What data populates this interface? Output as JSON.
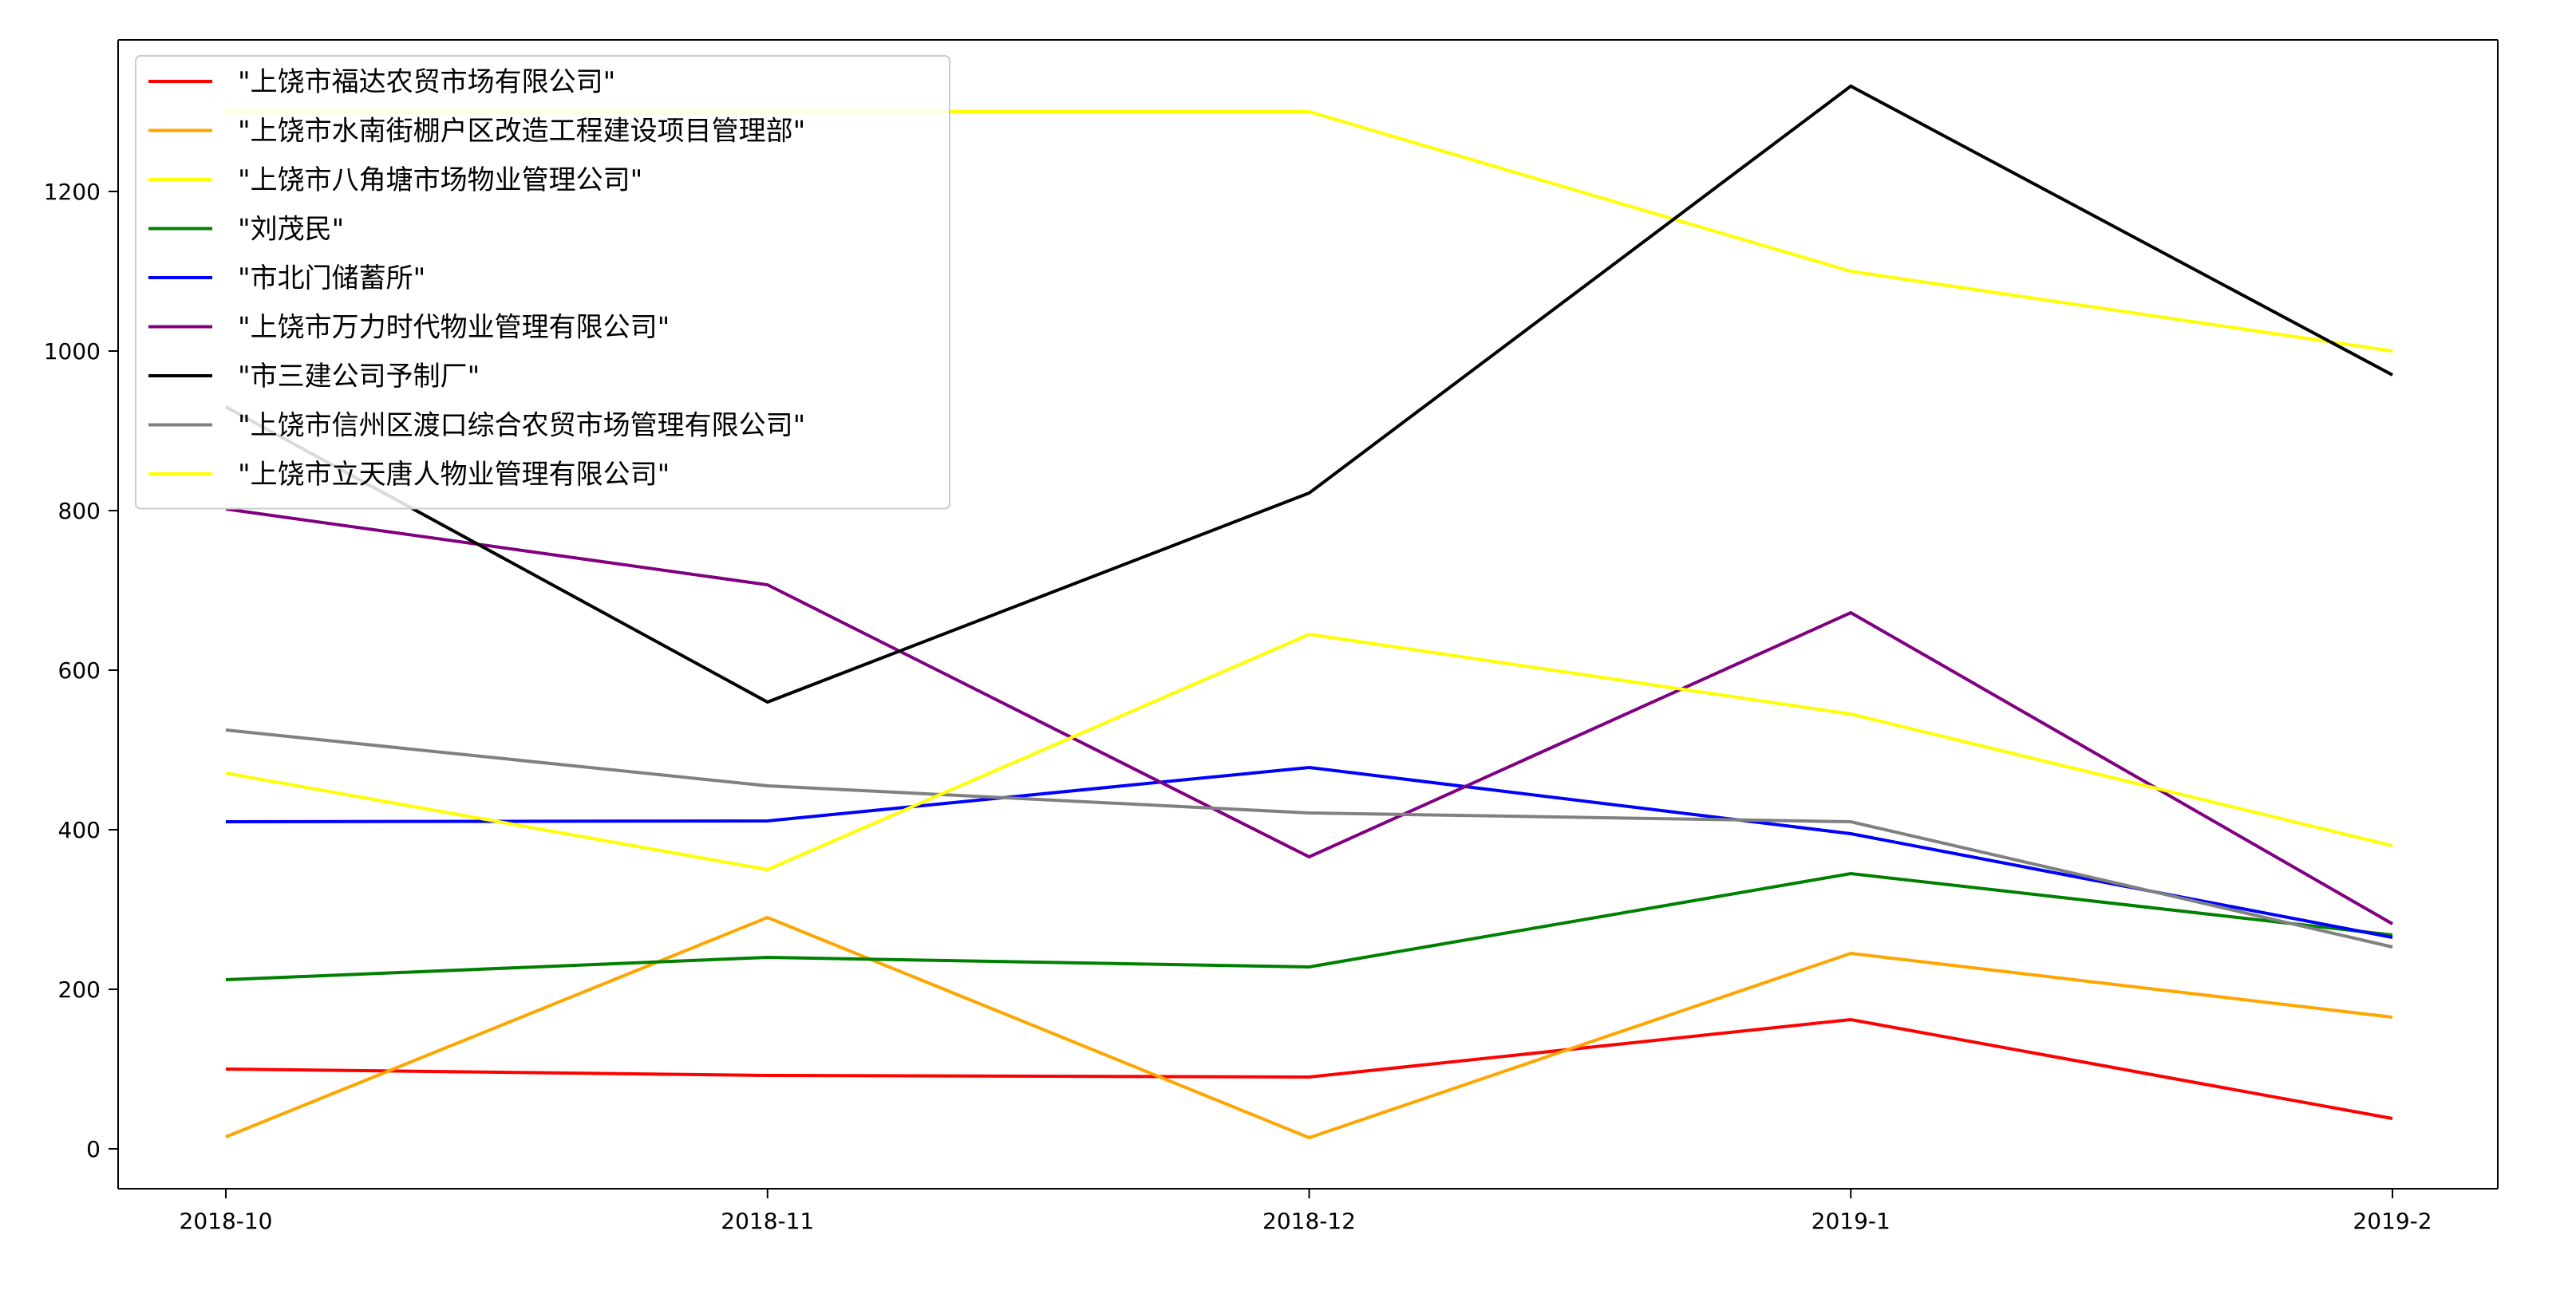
{
  "chart_data": {
    "type": "line",
    "categories": [
      "2018-10",
      "2018-11",
      "2018-12",
      "2019-1",
      "2019-2"
    ],
    "ylim": [
      -50,
      1390
    ],
    "yticks": [
      0,
      200,
      400,
      600,
      800,
      1000,
      1200
    ],
    "grid": false,
    "legend_position": "top-left",
    "series": [
      {
        "name": "\"上饶市福达农贸市场有限公司\"",
        "color": "#ff0000",
        "values": [
          100,
          92,
          90,
          162,
          38
        ]
      },
      {
        "name": "\"上饶市水南街棚户区改造工程建设项目管理部\"",
        "color": "#ffa500",
        "values": [
          15,
          290,
          14,
          245,
          165
        ]
      },
      {
        "name": "\"上饶市八角塘市场物业管理公司\"",
        "color": "#ffff00",
        "values": [
          1300,
          1300,
          1300,
          1100,
          1000
        ]
      },
      {
        "name": "\"刘茂民\"",
        "color": "#008000",
        "values": [
          212,
          240,
          228,
          345,
          268
        ]
      },
      {
        "name": "\"市北门储蓄所\"",
        "color": "#0000ff",
        "values": [
          410,
          411,
          478,
          395,
          265
        ]
      },
      {
        "name": "\"上饶市万力时代物业管理有限公司\"",
        "color": "#800080",
        "values": [
          802,
          707,
          366,
          672,
          282
        ]
      },
      {
        "name": "\"市三建公司予制厂\"",
        "color": "#000000",
        "values": [
          930,
          560,
          822,
          1332,
          970
        ]
      },
      {
        "name": "\"上饶市信州区渡口综合农贸市场管理有限公司\"",
        "color": "#808080",
        "values": [
          525,
          455,
          421,
          410,
          253
        ]
      },
      {
        "name": "\"上饶市立天唐人物业管理有限公司\"",
        "color": "#ffff00",
        "values": [
          471,
          350,
          645,
          545,
          380
        ]
      }
    ]
  }
}
